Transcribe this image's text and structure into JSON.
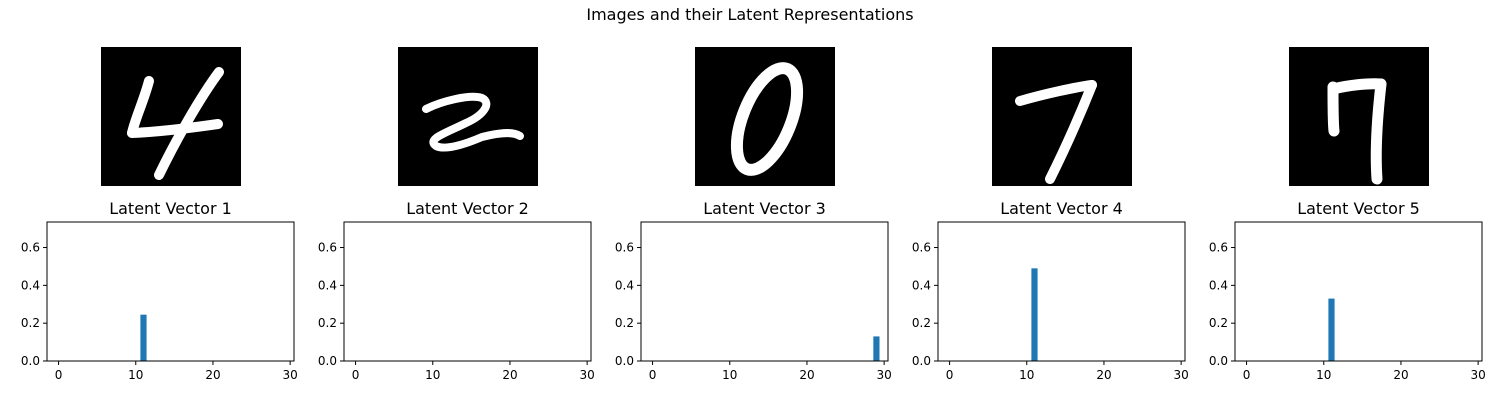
{
  "figure": {
    "suptitle": "Images and their Latent Representations"
  },
  "digit_labels": [
    "4",
    "2",
    "0",
    "7",
    "7"
  ],
  "chart_data": [
    {
      "type": "bar",
      "title": "Latent Vector 1",
      "x": [
        11
      ],
      "values": [
        0.245
      ],
      "xlim": [
        -1.5,
        30.5
      ],
      "ylim": [
        0,
        0.735
      ],
      "xticks": [
        0,
        10,
        20,
        30
      ],
      "yticks": [
        0.0,
        0.2,
        0.4,
        0.6
      ],
      "bar_color": "#1f77b4"
    },
    {
      "type": "bar",
      "title": "Latent Vector 2",
      "x": [],
      "values": [],
      "xlim": [
        -1.5,
        30.5
      ],
      "ylim": [
        0,
        0.735
      ],
      "xticks": [
        0,
        10,
        20,
        30
      ],
      "yticks": [
        0.0,
        0.2,
        0.4,
        0.6
      ],
      "bar_color": "#1f77b4"
    },
    {
      "type": "bar",
      "title": "Latent Vector 3",
      "x": [
        29
      ],
      "values": [
        0.13
      ],
      "xlim": [
        -1.5,
        30.5
      ],
      "ylim": [
        0,
        0.735
      ],
      "xticks": [
        0,
        10,
        20,
        30
      ],
      "yticks": [
        0.0,
        0.2,
        0.4,
        0.6
      ],
      "bar_color": "#1f77b4"
    },
    {
      "type": "bar",
      "title": "Latent Vector 4",
      "x": [
        11
      ],
      "values": [
        0.49
      ],
      "xlim": [
        -1.5,
        30.5
      ],
      "ylim": [
        0,
        0.735
      ],
      "xticks": [
        0,
        10,
        20,
        30
      ],
      "yticks": [
        0.0,
        0.2,
        0.4,
        0.6
      ],
      "bar_color": "#1f77b4"
    },
    {
      "type": "bar",
      "title": "Latent Vector 5",
      "x": [
        11
      ],
      "values": [
        0.33
      ],
      "xlim": [
        -1.5,
        30.5
      ],
      "ylim": [
        0,
        0.735
      ],
      "xticks": [
        0,
        10,
        20,
        30
      ],
      "yticks": [
        0.0,
        0.2,
        0.4,
        0.6
      ],
      "bar_color": "#1f77b4"
    }
  ]
}
